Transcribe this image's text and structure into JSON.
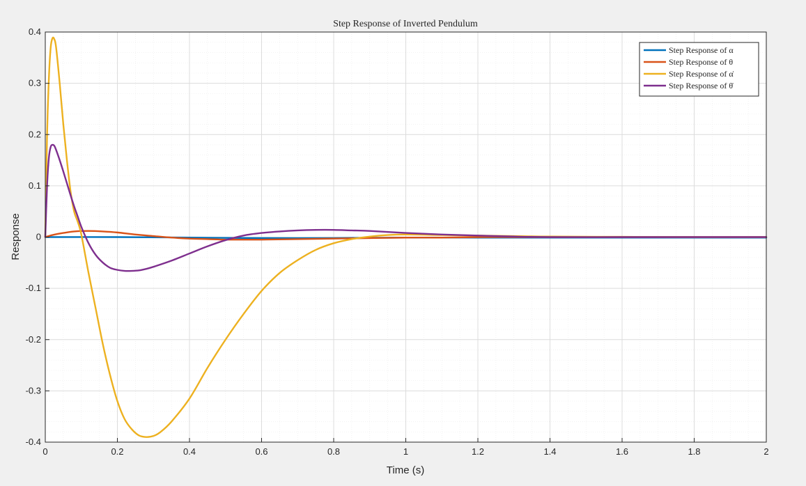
{
  "chart_data": {
    "type": "line",
    "title": "Step Response of Inverted Pendulum",
    "xlabel": "Time (s)",
    "ylabel": "Response",
    "xlim": [
      0,
      2
    ],
    "ylim": [
      -0.4,
      0.4
    ],
    "xticks": [
      "0",
      "0.2",
      "0.4",
      "0.6",
      "0.8",
      "1",
      "1.2",
      "1.4",
      "1.6",
      "1.8",
      "2"
    ],
    "yticks": [
      "-0.4",
      "-0.3",
      "-0.2",
      "-0.1",
      "0",
      "0.1",
      "0.2",
      "0.3",
      "0.4"
    ],
    "grid": true,
    "minor_grid": true,
    "legend_position": "top-right",
    "series": [
      {
        "name": "Step Response of α",
        "color": "#0072BD",
        "x": [
          0,
          0.2,
          0.4,
          0.6,
          0.8,
          1.0,
          1.2,
          1.4,
          1.6,
          1.8,
          2.0
        ],
        "y": [
          0,
          0,
          -0.001,
          -0.002,
          -0.002,
          -0.001,
          -0.001,
          -0.001,
          -0.001,
          -0.001,
          -0.001
        ]
      },
      {
        "name": "Step Response of θ",
        "color": "#D95319",
        "x": [
          0,
          0.02,
          0.05,
          0.08,
          0.12,
          0.16,
          0.2,
          0.25,
          0.3,
          0.35,
          0.4,
          0.45,
          0.5,
          0.55,
          0.6,
          0.7,
          0.8,
          0.9,
          1.0,
          1.1,
          1.2,
          1.3,
          1.4,
          1.6,
          1.8,
          2.0
        ],
        "y": [
          0,
          0.004,
          0.008,
          0.011,
          0.012,
          0.011,
          0.009,
          0.005,
          0.002,
          -0.001,
          -0.003,
          -0.004,
          -0.005,
          -0.005,
          -0.005,
          -0.004,
          -0.003,
          -0.002,
          -0.001,
          -0.001,
          0,
          0,
          0,
          0,
          0,
          0
        ]
      },
      {
        "name": "Step Response of α̇",
        "color": "#EDB120",
        "x": [
          0,
          0.005,
          0.01,
          0.015,
          0.02,
          0.025,
          0.03,
          0.04,
          0.05,
          0.06,
          0.07,
          0.08,
          0.09,
          0.1,
          0.12,
          0.14,
          0.16,
          0.18,
          0.2,
          0.22,
          0.24,
          0.26,
          0.28,
          0.3,
          0.32,
          0.35,
          0.4,
          0.45,
          0.5,
          0.55,
          0.6,
          0.65,
          0.7,
          0.75,
          0.8,
          0.85,
          0.9,
          0.95,
          1.0,
          1.1,
          1.2,
          1.3,
          1.4,
          1.6,
          1.8,
          2.0
        ],
        "y": [
          0,
          0.2,
          0.31,
          0.37,
          0.388,
          0.386,
          0.37,
          0.3,
          0.22,
          0.15,
          0.09,
          0.05,
          0.03,
          0.005,
          -0.07,
          -0.14,
          -0.21,
          -0.27,
          -0.32,
          -0.355,
          -0.375,
          -0.387,
          -0.39,
          -0.388,
          -0.38,
          -0.36,
          -0.315,
          -0.255,
          -0.2,
          -0.15,
          -0.105,
          -0.07,
          -0.045,
          -0.025,
          -0.012,
          -0.004,
          0.001,
          0.004,
          0.005,
          0.004,
          0.003,
          0.002,
          0.001,
          0.0005,
          0,
          0
        ]
      },
      {
        "name": "Step Response of θ̇",
        "color": "#7E2F8E",
        "x": [
          0,
          0.005,
          0.01,
          0.015,
          0.02,
          0.025,
          0.03,
          0.04,
          0.05,
          0.06,
          0.07,
          0.08,
          0.09,
          0.1,
          0.12,
          0.14,
          0.16,
          0.18,
          0.2,
          0.22,
          0.24,
          0.26,
          0.28,
          0.3,
          0.35,
          0.4,
          0.45,
          0.5,
          0.55,
          0.6,
          0.65,
          0.7,
          0.75,
          0.8,
          0.85,
          0.9,
          1.0,
          1.1,
          1.2,
          1.3,
          1.4,
          1.6,
          1.8,
          2.0
        ],
        "y": [
          0,
          0.1,
          0.155,
          0.176,
          0.18,
          0.178,
          0.17,
          0.15,
          0.128,
          0.105,
          0.082,
          0.06,
          0.04,
          0.02,
          -0.012,
          -0.035,
          -0.05,
          -0.06,
          -0.064,
          -0.066,
          -0.066,
          -0.065,
          -0.062,
          -0.058,
          -0.046,
          -0.032,
          -0.018,
          -0.006,
          0.003,
          0.008,
          0.011,
          0.013,
          0.014,
          0.014,
          0.013,
          0.012,
          0.008,
          0.005,
          0.003,
          0.001,
          0,
          0,
          0,
          0
        ]
      }
    ]
  }
}
